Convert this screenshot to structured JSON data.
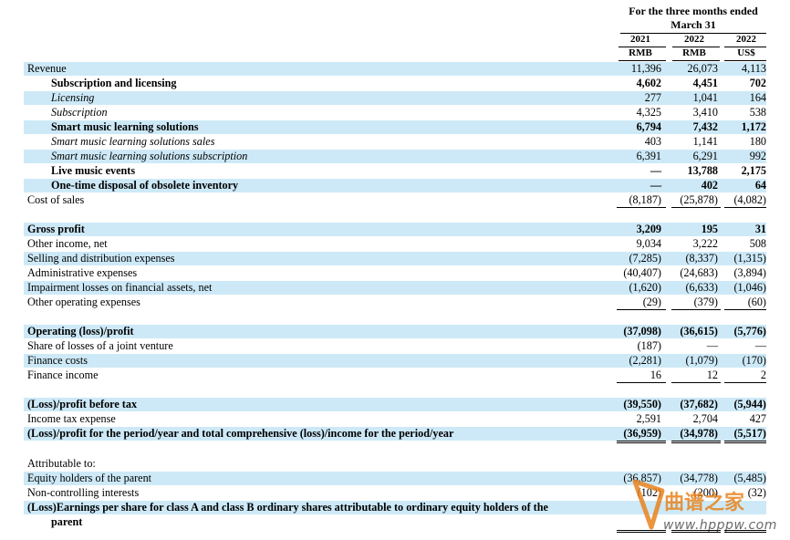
{
  "header": {
    "period_line1": "For the three months ended",
    "period_line2": "March 31",
    "columns": [
      {
        "year": "2021",
        "currency": "RMB"
      },
      {
        "year": "2022",
        "currency": "RMB"
      },
      {
        "year": "2022",
        "currency": "US$"
      }
    ]
  },
  "rows": [
    {
      "label": "Revenue",
      "style": "normal",
      "indent": 0,
      "shade": true,
      "v1": "11,396",
      "v2": "26,073",
      "v3": "4,113"
    },
    {
      "label": "Subscription and licensing",
      "style": "bold",
      "indent": 1,
      "shade": false,
      "v1": "4,602",
      "v2": "4,451",
      "v3": "702"
    },
    {
      "label": "Licensing",
      "style": "italic",
      "indent": 1,
      "shade": true,
      "v1": "277",
      "v2": "1,041",
      "v3": "164"
    },
    {
      "label": "Subscription",
      "style": "italic",
      "indent": 1,
      "shade": false,
      "v1": "4,325",
      "v2": "3,410",
      "v3": "538"
    },
    {
      "label": "Smart music learning solutions",
      "style": "bold",
      "indent": 1,
      "shade": true,
      "v1": "6,794",
      "v2": "7,432",
      "v3": "1,172"
    },
    {
      "label": "Smart music learning solutions sales",
      "style": "italic",
      "indent": 1,
      "shade": false,
      "v1": "403",
      "v2": "1,141",
      "v3": "180"
    },
    {
      "label": "Smart music learning solutions subscription",
      "style": "italic",
      "indent": 1,
      "shade": true,
      "v1": "6,391",
      "v2": "6,291",
      "v3": "992"
    },
    {
      "label": "Live music events",
      "style": "bold",
      "indent": 1,
      "shade": false,
      "v1": "—",
      "v2": "13,788",
      "v3": "2,175"
    },
    {
      "label": "One-time disposal of obsolete inventory",
      "style": "bold",
      "indent": 1,
      "shade": true,
      "v1": "—",
      "v2": "402",
      "v3": "64"
    },
    {
      "label": "Cost of sales",
      "style": "normal",
      "indent": 0,
      "shade": false,
      "v1": "(8,187)",
      "v2": "(25,878)",
      "v3": "(4,082)"
    },
    {
      "label": "Gross profit",
      "style": "bold",
      "indent": 0,
      "shade": true,
      "v1": "3,209",
      "v2": "195",
      "v3": "31"
    },
    {
      "label": "Other income, net",
      "style": "normal",
      "indent": 0,
      "shade": false,
      "v1": "9,034",
      "v2": "3,222",
      "v3": "508"
    },
    {
      "label": "Selling and distribution expenses",
      "style": "normal",
      "indent": 0,
      "shade": true,
      "v1": "(7,285)",
      "v2": "(8,337)",
      "v3": "(1,315)"
    },
    {
      "label": "Administrative expenses",
      "style": "normal",
      "indent": 0,
      "shade": false,
      "v1": "(40,407)",
      "v2": "(24,683)",
      "v3": "(3,894)"
    },
    {
      "label": "Impairment losses on financial assets, net",
      "style": "normal",
      "indent": 0,
      "shade": true,
      "v1": "(1,620)",
      "v2": "(6,633)",
      "v3": "(1,046)"
    },
    {
      "label": "Other operating expenses",
      "style": "normal",
      "indent": 0,
      "shade": false,
      "v1": "(29)",
      "v2": "(379)",
      "v3": "(60)"
    },
    {
      "label": "Operating (loss)/profit",
      "style": "bold",
      "indent": 0,
      "shade": true,
      "v1": "(37,098)",
      "v2": "(36,615)",
      "v3": "(5,776)"
    },
    {
      "label": "Share of losses of a joint venture",
      "style": "normal",
      "indent": 0,
      "shade": false,
      "v1": "(187)",
      "v2": "—",
      "v3": "—"
    },
    {
      "label": "Finance costs",
      "style": "normal",
      "indent": 0,
      "shade": true,
      "v1": "(2,281)",
      "v2": "(1,079)",
      "v3": "(170)"
    },
    {
      "label": "Finance income",
      "style": "normal",
      "indent": 0,
      "shade": false,
      "v1": "16",
      "v2": "12",
      "v3": "2"
    },
    {
      "label": "(Loss)/profit before tax",
      "style": "bold",
      "indent": 0,
      "shade": true,
      "v1": "(39,550)",
      "v2": "(37,682)",
      "v3": "(5,944)"
    },
    {
      "label": "Income tax expense",
      "style": "normal",
      "indent": 0,
      "shade": false,
      "v1": "2,591",
      "v2": "2,704",
      "v3": "427"
    },
    {
      "label": "(Loss)/profit for the period/year and total comprehensive (loss)/income for the period/year",
      "style": "bold",
      "indent": 0,
      "shade": true,
      "v1": "(36,959)",
      "v2": "(34,978)",
      "v3": "(5,517)"
    },
    {
      "label": "Attributable to:",
      "style": "normal",
      "indent": 0,
      "shade": false,
      "v1": "",
      "v2": "",
      "v3": ""
    },
    {
      "label": "Equity holders of the parent",
      "style": "normal",
      "indent": 0,
      "shade": true,
      "v1": "(36,857)",
      "v2": "(34,778)",
      "v3": "(5,485)"
    },
    {
      "label": "Non-controlling interests",
      "style": "normal",
      "indent": 0,
      "shade": false,
      "v1": "(102)",
      "v2": "(200)",
      "v3": "(32)"
    },
    {
      "label": "(Loss)Earnings per share for class A and class B ordinary shares attributable to ordinary equity holders of the",
      "style": "bold",
      "indent": 0,
      "shade": true,
      "v1": "",
      "v2": "",
      "v3": ""
    },
    {
      "label": "parent",
      "style": "bold",
      "indent": 1,
      "shade": false,
      "v1": "",
      "v2": "",
      "v3": ""
    }
  ],
  "watermark": {
    "brand": "曲谱之家",
    "url": "www.hpppw.com",
    "color": "#e8831f"
  }
}
